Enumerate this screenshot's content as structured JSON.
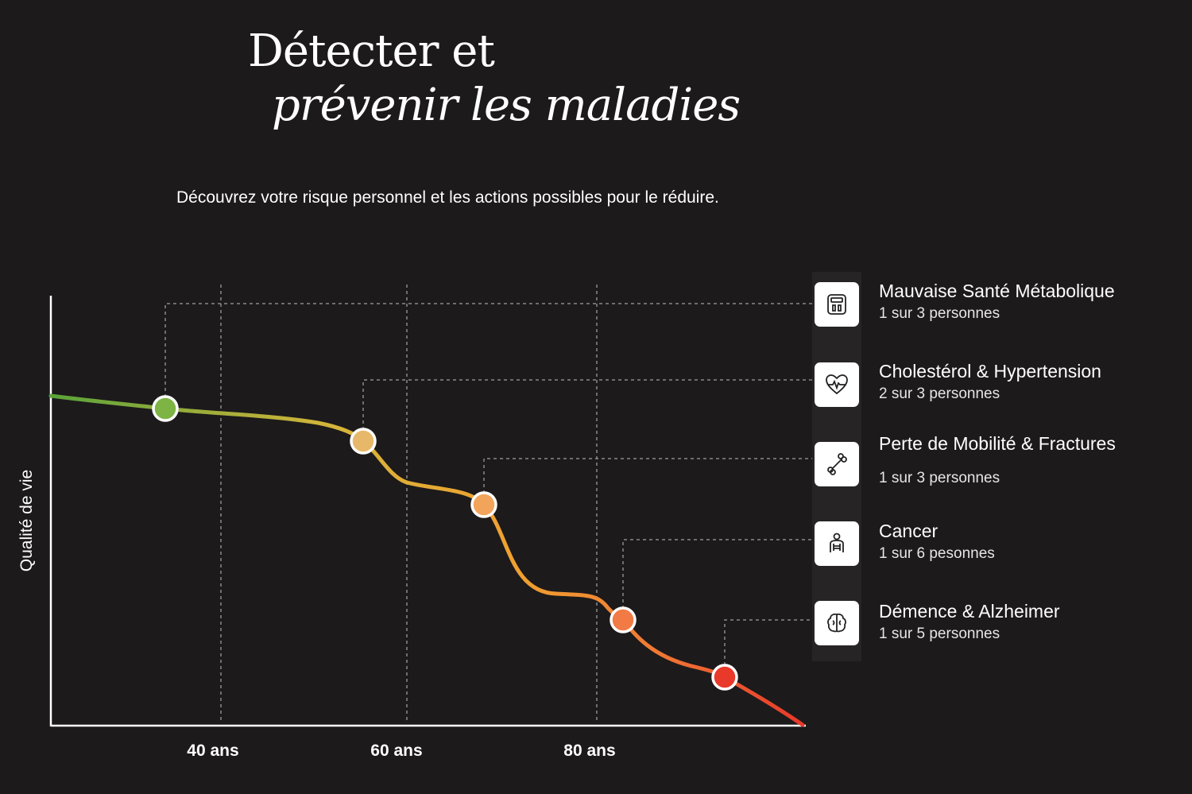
{
  "header": {
    "title_line1": "Détecter et",
    "title_line2": "prévenir les maladies",
    "subtitle": "Découvrez votre risque personnel et les actions possibles pour le réduire."
  },
  "chart_data": {
    "type": "line",
    "ylabel": "Qualité de vie",
    "x_ticks": [
      "40 ans",
      "60 ans",
      "80 ans"
    ],
    "markers": [
      {
        "label": "Mauvaise Santé Métabolique",
        "color": "#7db443"
      },
      {
        "label": "Cholestérol & Hypertension",
        "color": "#e8b86a"
      },
      {
        "label": "Perte de Mobilité & Fractures",
        "color": "#f2a55a"
      },
      {
        "label": "Cancer",
        "color": "#f27a45"
      },
      {
        "label": "Démence & Alzheimer",
        "color": "#e8392a"
      }
    ],
    "gradient": [
      "#5aa43a",
      "#d7b53a",
      "#f0a030",
      "#f07a35",
      "#e8382a"
    ]
  },
  "diseases": [
    {
      "name": "Mauvaise Santé Métabolique",
      "stat": "1 sur 3 personnes",
      "icon": "scale-icon"
    },
    {
      "name": "Cholestérol & Hypertension",
      "stat": "2 sur 3 personnes",
      "icon": "heart-pulse-icon"
    },
    {
      "name": "Perte de Mobilité & Fractures",
      "stat": "1 sur 3 personnes",
      "icon": "bone-icon"
    },
    {
      "name": "Cancer",
      "stat": "1 sur 6 pesonnes",
      "icon": "body-scan-icon"
    },
    {
      "name": "Démence & Alzheimer",
      "stat": "1 sur 5 personnes",
      "icon": "brain-icon"
    }
  ]
}
